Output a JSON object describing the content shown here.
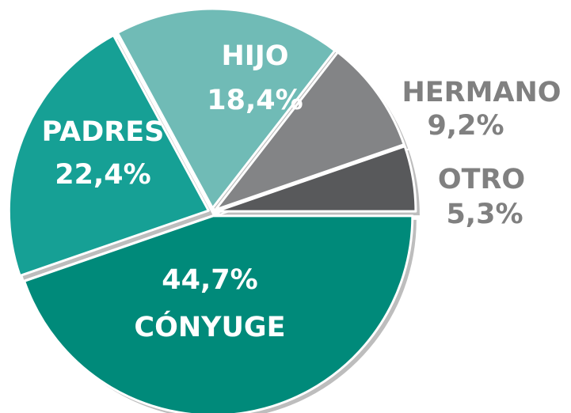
{
  "chart_data": {
    "type": "pie",
    "categories": [
      "CÓNYUGE",
      "PADRES",
      "HIJO",
      "HERMANO",
      "OTRO"
    ],
    "values": [
      44.7,
      22.4,
      18.4,
      9.2,
      5.3
    ],
    "value_labels": [
      "44,7%",
      "22,4%",
      "18,4%",
      "9,2%",
      "5,3%"
    ],
    "colors": [
      "#008a7a",
      "#16a095",
      "#70bbb6",
      "#838486",
      "#58595b"
    ]
  }
}
